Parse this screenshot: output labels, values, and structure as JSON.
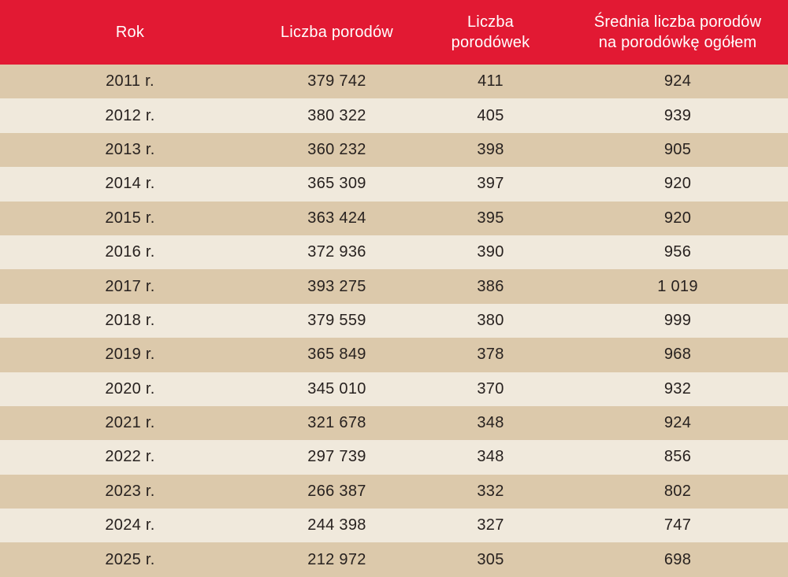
{
  "colors": {
    "header_bg": "#e21933",
    "header_text": "#ffffff",
    "row_dark": "#dcc9ab",
    "row_light": "#f0e9dc",
    "cell_text": "#27211f"
  },
  "header": {
    "cells": [
      {
        "line1": "Rok",
        "line2": ""
      },
      {
        "line1": "Liczba porodów",
        "line2": ""
      },
      {
        "line1": "Liczba",
        "line2": "porodówek"
      },
      {
        "line1": "Średnia liczba porodów",
        "line2": "na porodówkę ogółem"
      }
    ]
  },
  "rows": [
    {
      "year": "2011 r.",
      "births": "379 742",
      "wards": "411",
      "avg": "924"
    },
    {
      "year": "2012 r.",
      "births": "380 322",
      "wards": "405",
      "avg": "939"
    },
    {
      "year": "2013 r.",
      "births": "360 232",
      "wards": "398",
      "avg": "905"
    },
    {
      "year": "2014 r.",
      "births": "365 309",
      "wards": "397",
      "avg": "920"
    },
    {
      "year": "2015 r.",
      "births": "363 424",
      "wards": "395",
      "avg": "920"
    },
    {
      "year": "2016 r.",
      "births": "372 936",
      "wards": "390",
      "avg": "956"
    },
    {
      "year": "2017 r.",
      "births": "393 275",
      "wards": "386",
      "avg": "1 019"
    },
    {
      "year": "2018 r.",
      "births": "379 559",
      "wards": "380",
      "avg": "999"
    },
    {
      "year": "2019 r.",
      "births": "365 849",
      "wards": "378",
      "avg": "968"
    },
    {
      "year": "2020 r.",
      "births": "345 010",
      "wards": "370",
      "avg": "932"
    },
    {
      "year": "2021 r.",
      "births": "321 678",
      "wards": "348",
      "avg": "924"
    },
    {
      "year": "2022 r.",
      "births": "297 739",
      "wards": "348",
      "avg": "856"
    },
    {
      "year": "2023 r.",
      "births": "266 387",
      "wards": "332",
      "avg": "802"
    },
    {
      "year": "2024 r.",
      "births": "244 398",
      "wards": "327",
      "avg": "747"
    },
    {
      "year": "2025 r.",
      "births": "212 972",
      "wards": "305",
      "avg": "698"
    }
  ],
  "chart_data": {
    "type": "table",
    "columns": [
      "Rok",
      "Liczba porodów",
      "Liczba porodówek",
      "Średnia liczba porodów na porodówkę ogółem"
    ],
    "years": [
      "2011",
      "2012",
      "2013",
      "2014",
      "2015",
      "2016",
      "2017",
      "2018",
      "2019",
      "2020",
      "2021",
      "2022",
      "2023",
      "2024",
      "2025"
    ],
    "series": [
      {
        "name": "Liczba porodów",
        "values": [
          379742,
          380322,
          360232,
          365309,
          363424,
          372936,
          393275,
          379559,
          365849,
          345010,
          321678,
          297739,
          266387,
          244398,
          212972
        ]
      },
      {
        "name": "Liczba porodówek",
        "values": [
          411,
          405,
          398,
          397,
          395,
          390,
          386,
          380,
          378,
          370,
          348,
          348,
          332,
          327,
          305
        ]
      },
      {
        "name": "Średnia liczba porodów na porodówkę ogółem",
        "values": [
          924,
          939,
          905,
          920,
          920,
          956,
          1019,
          999,
          968,
          932,
          924,
          856,
          802,
          747,
          698
        ]
      }
    ]
  }
}
